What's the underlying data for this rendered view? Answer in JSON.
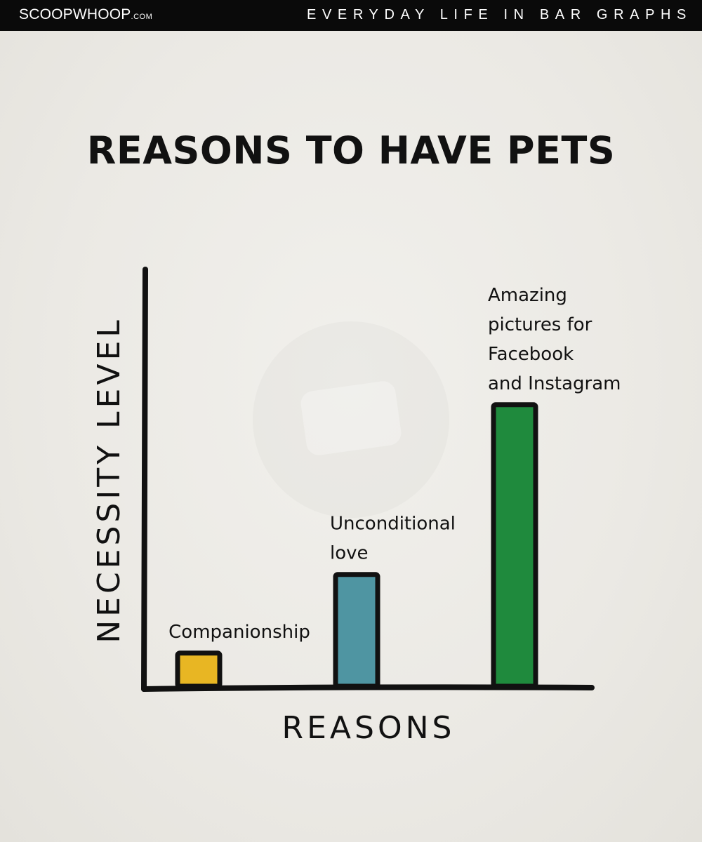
{
  "header": {
    "brand": "SCOOPWHOOP",
    "brand_suffix": ".COM",
    "series_title": "EVERYDAY LIFE IN BAR GRAPHS"
  },
  "colors": {
    "background": "#ecebe6",
    "header": "#0a0a0a",
    "ink": "#111111"
  },
  "chart_data": {
    "type": "bar",
    "title": "REASONS TO HAVE PETS",
    "xlabel": "REASONS",
    "ylabel": "NECESSITY LEVEL",
    "ylim": [
      0,
      100
    ],
    "grid": false,
    "legend": "none",
    "categories": [
      {
        "lines": [
          "Companionship"
        ],
        "value": 8,
        "color": "#e8b623"
      },
      {
        "lines": [
          "Unconditional",
          "love"
        ],
        "value": 27,
        "color": "#4f95a2"
      },
      {
        "lines": [
          "Amazing",
          "pictures for",
          "Facebook",
          "and Instagram"
        ],
        "value": 68,
        "color": "#1f8a3d"
      }
    ]
  }
}
